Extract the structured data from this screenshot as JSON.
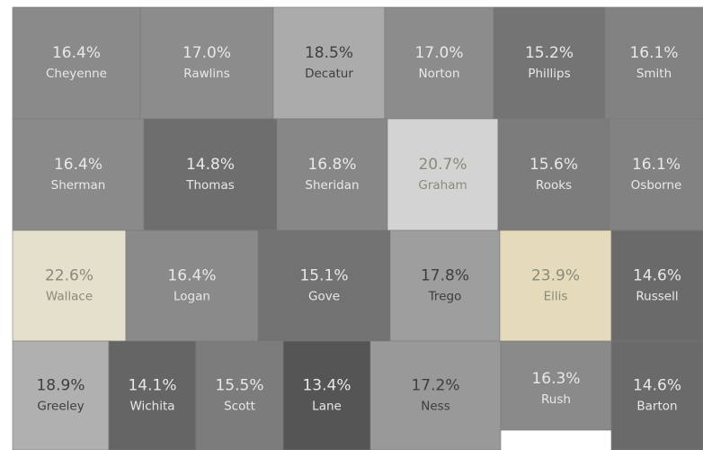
{
  "counties": [
    {
      "name": "Cheyenne",
      "value": "16.4%",
      "color": "#8a8a8a"
    },
    {
      "name": "Rawlins",
      "value": "17.0%",
      "color": "#8c8c8c"
    },
    {
      "name": "Decatur",
      "value": "18.5%",
      "color": "#ababab"
    },
    {
      "name": "Norton",
      "value": "17.0%",
      "color": "#8c8c8c"
    },
    {
      "name": "Phillips",
      "value": "15.2%",
      "color": "#747474"
    },
    {
      "name": "Smith",
      "value": "16.1%",
      "color": "#828282"
    },
    {
      "name": "Sherman",
      "value": "16.4%",
      "color": "#8a8a8a"
    },
    {
      "name": "Thomas",
      "value": "14.8%",
      "color": "#6e6e6e"
    },
    {
      "name": "Sheridan",
      "value": "16.8%",
      "color": "#878787"
    },
    {
      "name": "Graham",
      "value": "20.7%",
      "color": "#d3d3d3"
    },
    {
      "name": "Rooks",
      "value": "15.6%",
      "color": "#7c7c7c"
    },
    {
      "name": "Osborne",
      "value": "16.1%",
      "color": "#828282"
    },
    {
      "name": "Wallace",
      "value": "22.6%",
      "color": "#e5e0cc"
    },
    {
      "name": "Logan",
      "value": "16.4%",
      "color": "#8a8a8a"
    },
    {
      "name": "Gove",
      "value": "15.1%",
      "color": "#727272"
    },
    {
      "name": "Trego",
      "value": "17.8%",
      "color": "#9e9e9e"
    },
    {
      "name": "Ellis",
      "value": "23.9%",
      "color": "#e5dbbb"
    },
    {
      "name": "Russell",
      "value": "14.6%",
      "color": "#6a6a6a"
    },
    {
      "name": "Greeley",
      "value": "18.9%",
      "color": "#b0b0b0"
    },
    {
      "name": "Wichita",
      "value": "14.1%",
      "color": "#656565"
    },
    {
      "name": "Scott",
      "value": "15.5%",
      "color": "#7c7c7c"
    },
    {
      "name": "Lane",
      "value": "13.4%",
      "color": "#555555"
    },
    {
      "name": "Ness",
      "value": "17.2%",
      "color": "#999999"
    },
    {
      "name": "Rush",
      "value": "16.3%",
      "color": "#8a8a8a"
    },
    {
      "name": "Barton",
      "value": "14.6%",
      "color": "#6a6a6a"
    }
  ]
}
